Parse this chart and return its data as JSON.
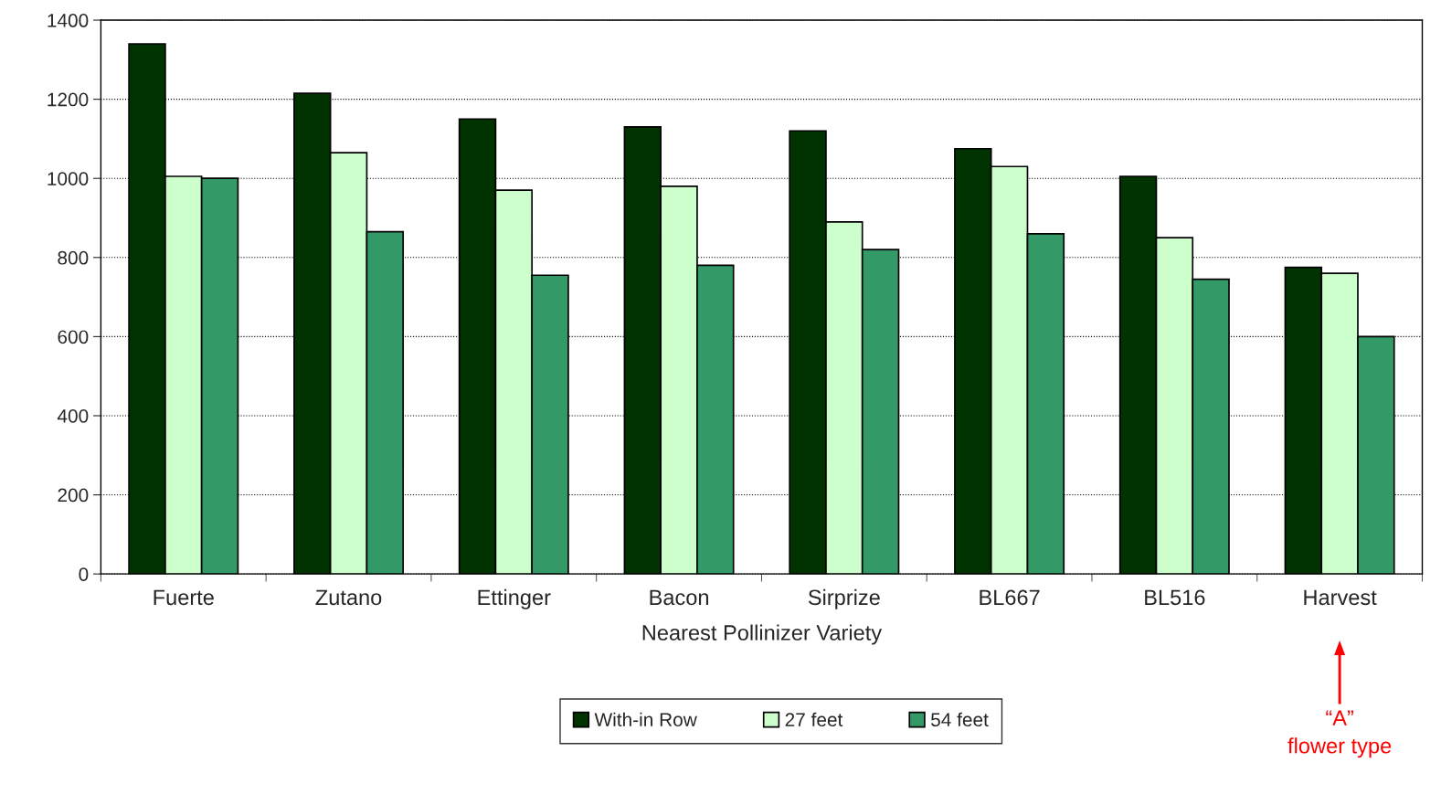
{
  "chart_data": {
    "type": "bar",
    "xlabel": "Nearest Pollinizer Variety",
    "categories": [
      "Fuerte",
      "Zutano",
      "Ettinger",
      "Bacon",
      "Sirprize",
      "BL667",
      "BL516",
      "Harvest"
    ],
    "series": [
      {
        "name": "With-in Row",
        "color": "#003300",
        "values": [
          1340,
          1215,
          1150,
          1130,
          1120,
          1075,
          1005,
          775
        ]
      },
      {
        "name": "27 feet",
        "color": "#ccffcc",
        "values": [
          1005,
          1065,
          970,
          980,
          890,
          1030,
          850,
          760
        ]
      },
      {
        "name": "54 feet",
        "color": "#339966",
        "values": [
          1000,
          865,
          755,
          780,
          820,
          860,
          745,
          600
        ]
      }
    ],
    "ylim": [
      0,
      1400
    ],
    "yticks": [
      0,
      200,
      400,
      600,
      800,
      1000,
      1200,
      1400
    ],
    "grid": "y",
    "legend": "bottom",
    "annotations": [
      "“A”\nflower type"
    ]
  }
}
